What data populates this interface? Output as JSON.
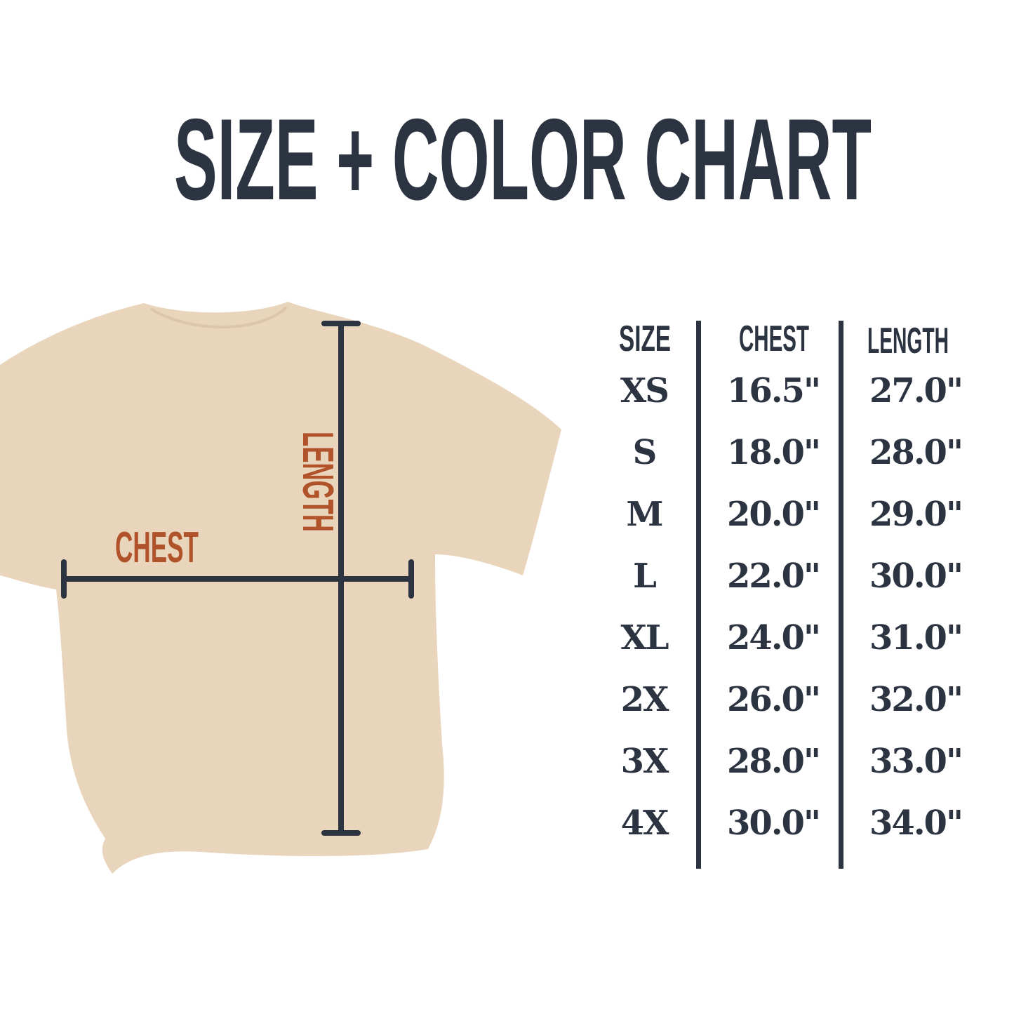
{
  "title": "SIZE + COLOR CHART",
  "diagram": {
    "chest_label": "CHEST",
    "length_label": "LENGTH",
    "shirt_color": "#e9d5bb",
    "measure_color": "#2b3440",
    "label_color": "#b0522a"
  },
  "table": {
    "headers": [
      "SIZE",
      "CHEST",
      "LENGTH"
    ],
    "rows": [
      {
        "size": "XS",
        "chest": "16.5\"",
        "length": "27.0\""
      },
      {
        "size": "S",
        "chest": "18.0\"",
        "length": "28.0\""
      },
      {
        "size": "M",
        "chest": "20.0\"",
        "length": "29.0\""
      },
      {
        "size": "L",
        "chest": "22.0\"",
        "length": "30.0\""
      },
      {
        "size": "XL",
        "chest": "24.0\"",
        "length": "31.0\""
      },
      {
        "size": "2X",
        "chest": "26.0\"",
        "length": "32.0\""
      },
      {
        "size": "3X",
        "chest": "28.0\"",
        "length": "33.0\""
      },
      {
        "size": "4X",
        "chest": "30.0\"",
        "length": "34.0\""
      }
    ]
  }
}
